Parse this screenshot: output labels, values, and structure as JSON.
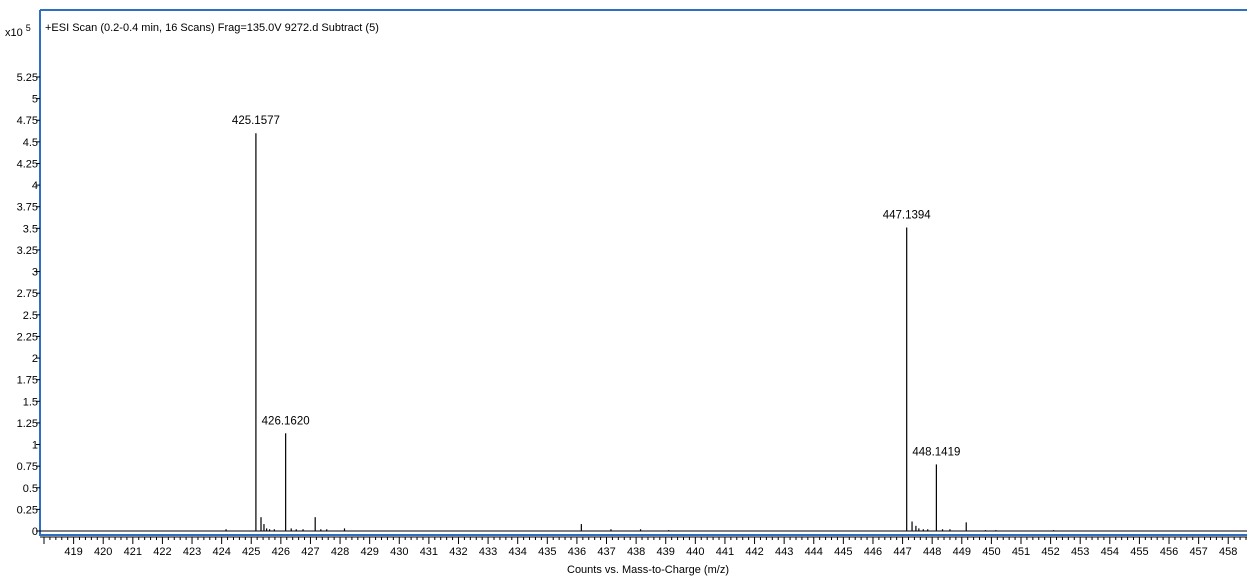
{
  "chart_data": {
    "type": "bar",
    "title": "+ESI Scan (0.2-0.4 min, 16 Scans) Frag=135.0V 9272.d  Subtract (5)",
    "xlabel": "Counts vs. Mass-to-Charge (m/z)",
    "ylabel": "",
    "y_multiplier": "x10",
    "y_multiplier_exponent": "5",
    "xlim": [
      418.0,
      458.6
    ],
    "ylim": [
      0,
      5.5
    ],
    "x_ticks": [
      419,
      420,
      421,
      422,
      423,
      424,
      425,
      426,
      427,
      428,
      429,
      430,
      431,
      432,
      433,
      434,
      435,
      436,
      437,
      438,
      439,
      440,
      441,
      442,
      443,
      444,
      445,
      446,
      447,
      448,
      449,
      450,
      451,
      452,
      453,
      454,
      455,
      456,
      457,
      458
    ],
    "y_ticks": [
      "0",
      "0.25",
      "0.5",
      "0.75",
      "1",
      "1.25",
      "1.5",
      "1.75",
      "2",
      "2.25",
      "2.5",
      "2.75",
      "3",
      "3.25",
      "3.5",
      "3.75",
      "4",
      "4.25",
      "4.5",
      "4.75",
      "5",
      "5.25"
    ],
    "y_tick_values": [
      0,
      0.25,
      0.5,
      0.75,
      1,
      1.25,
      1.5,
      1.75,
      2,
      2.25,
      2.5,
      2.75,
      3,
      3.25,
      3.5,
      3.75,
      4,
      4.25,
      4.5,
      4.75,
      5,
      5.25
    ],
    "peaks": [
      {
        "mz": 424.15,
        "intensity": 0.02
      },
      {
        "mz": 425.1577,
        "intensity": 4.6,
        "label": "425.1577"
      },
      {
        "mz": 425.33,
        "intensity": 0.16
      },
      {
        "mz": 425.43,
        "intensity": 0.08
      },
      {
        "mz": 425.52,
        "intensity": 0.03
      },
      {
        "mz": 425.62,
        "intensity": 0.02
      },
      {
        "mz": 425.78,
        "intensity": 0.02
      },
      {
        "mz": 426.162,
        "intensity": 1.13,
        "label": "426.1620"
      },
      {
        "mz": 426.35,
        "intensity": 0.03
      },
      {
        "mz": 426.52,
        "intensity": 0.02
      },
      {
        "mz": 426.75,
        "intensity": 0.02
      },
      {
        "mz": 427.16,
        "intensity": 0.16
      },
      {
        "mz": 427.35,
        "intensity": 0.02
      },
      {
        "mz": 427.55,
        "intensity": 0.02
      },
      {
        "mz": 428.15,
        "intensity": 0.03
      },
      {
        "mz": 436.15,
        "intensity": 0.08
      },
      {
        "mz": 437.15,
        "intensity": 0.02
      },
      {
        "mz": 438.15,
        "intensity": 0.02
      },
      {
        "mz": 439.1,
        "intensity": 0.01
      },
      {
        "mz": 447.1394,
        "intensity": 3.51,
        "label": "447.1394"
      },
      {
        "mz": 447.32,
        "intensity": 0.11
      },
      {
        "mz": 447.45,
        "intensity": 0.06
      },
      {
        "mz": 447.55,
        "intensity": 0.03
      },
      {
        "mz": 447.7,
        "intensity": 0.02
      },
      {
        "mz": 447.85,
        "intensity": 0.02
      },
      {
        "mz": 448.1419,
        "intensity": 0.77,
        "label": "448.1419"
      },
      {
        "mz": 448.35,
        "intensity": 0.02
      },
      {
        "mz": 448.6,
        "intensity": 0.02
      },
      {
        "mz": 449.15,
        "intensity": 0.1
      },
      {
        "mz": 449.8,
        "intensity": 0.01
      },
      {
        "mz": 450.15,
        "intensity": 0.01
      },
      {
        "mz": 452.1,
        "intensity": 0.01
      }
    ],
    "grid": false,
    "colors": {
      "frame": "#2e6fc4",
      "line": "#000000",
      "axis": "#000000"
    }
  }
}
